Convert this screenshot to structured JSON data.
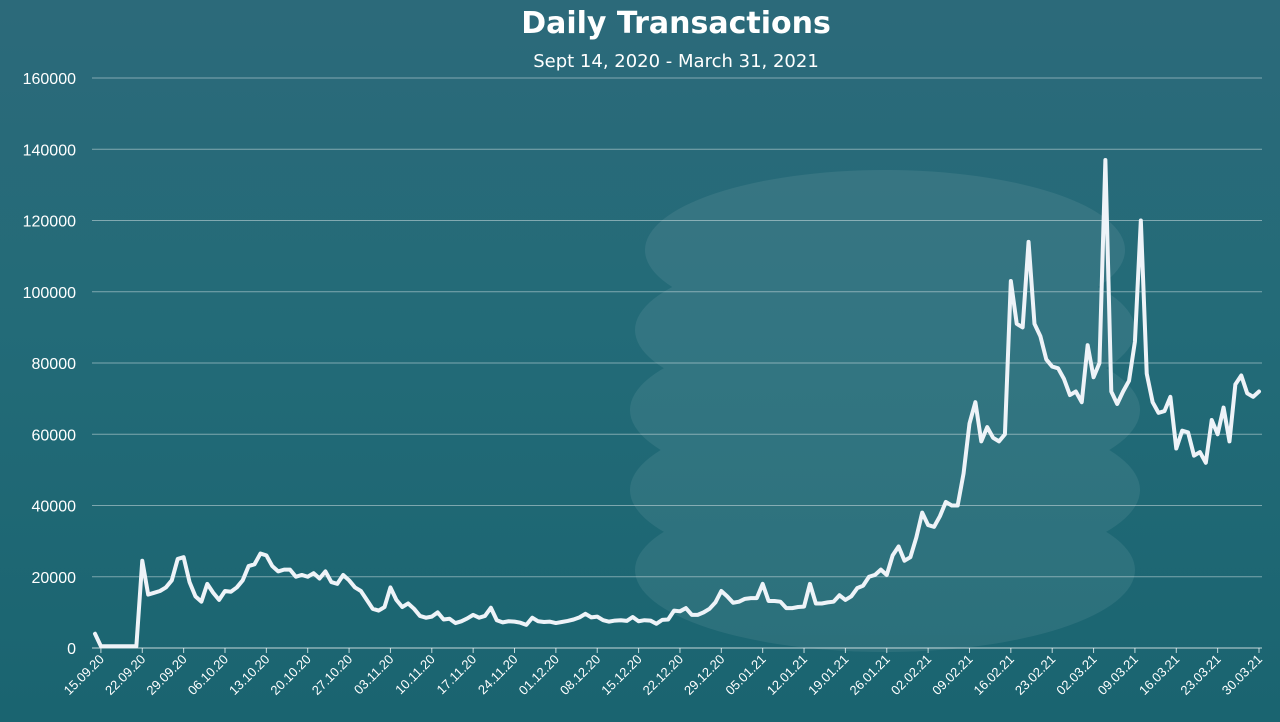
{
  "chart_data": {
    "type": "line",
    "title": "Daily Transactions",
    "subtitle": "Sept 14, 2020 - March 31, 2021",
    "xlabel": "",
    "ylabel": "",
    "ylim": [
      0,
      160000
    ],
    "yticks": [
      0,
      20000,
      40000,
      60000,
      80000,
      100000,
      120000,
      140000,
      160000
    ],
    "xticks": [
      "15.09.20",
      "22.09.20",
      "29.09.20",
      "06.10.20",
      "13.10.20",
      "20.10.20",
      "27.10.20",
      "03.11.20",
      "10.11.20",
      "17.11.20",
      "24.11.20",
      "01.12.20",
      "08.12.20",
      "15.12.20",
      "22.12.20",
      "29.12.20",
      "05.01.21",
      "12.01.21",
      "19.01.21",
      "26.01.21",
      "02.02.21",
      "09.02.21",
      "16.02.21",
      "23.02.21",
      "02.03.21",
      "09.03.21",
      "16.03.21",
      "23.03.21",
      "30.03.21"
    ],
    "grid": true,
    "line_color": "#eef3f8",
    "series": [
      {
        "values": [
          4000,
          500,
          500,
          500,
          500,
          500,
          500,
          500,
          24500,
          15000,
          15500,
          16000,
          17000,
          19000,
          25000,
          25500,
          18500,
          14500,
          13000,
          18000,
          15500,
          13500,
          16000,
          15800,
          17000,
          19000,
          23000,
          23500,
          26500,
          26000,
          23000,
          21500,
          22000,
          22000,
          20000,
          20500,
          20000,
          21000,
          19500,
          21500,
          18500,
          18000,
          20500,
          19000,
          17000,
          16000,
          13500,
          11000,
          10500,
          11500,
          17000,
          13500,
          11500,
          12500,
          11000,
          9000,
          8500,
          8800,
          10000,
          8000,
          8200,
          7000,
          7500,
          8300,
          9300,
          8500,
          9000,
          11300,
          7800,
          7200,
          7500,
          7400,
          7100,
          6500,
          8500,
          7500,
          7300,
          7400,
          7000,
          7300,
          7600,
          8000,
          8600,
          9600,
          8600,
          8800,
          7800,
          7400,
          7700,
          7800,
          7600,
          8700,
          7500,
          7800,
          7700,
          6800,
          7900,
          8000,
          10500,
          10300,
          11200,
          9300,
          9300,
          10000,
          11000,
          12800,
          16000,
          14500,
          12700,
          13000,
          13800,
          14000,
          14000,
          18000,
          13200,
          13200,
          13000,
          11200,
          11200,
          11500,
          11600,
          18000,
          12500,
          12500,
          12800,
          13000,
          14800,
          13500,
          14500,
          16800,
          17500,
          20000,
          20500,
          22000,
          20500,
          26000,
          28500,
          24500,
          25500,
          31000,
          38000,
          34500,
          34000,
          37000,
          41000,
          40000,
          40000,
          49000,
          63000,
          69000,
          58000,
          62000,
          59000,
          58000,
          60000,
          103000,
          91000,
          90000,
          114000,
          91000,
          87500,
          81000,
          79000,
          78500,
          75500,
          71000,
          72000,
          69000,
          85000,
          76000,
          80000,
          137000,
          72000,
          68500,
          72000,
          75000,
          86000,
          120000,
          77000,
          69000,
          66000,
          66500,
          70500,
          56000,
          61000,
          60500,
          54000,
          55000,
          52000,
          64000,
          60000,
          67500,
          58000,
          74000,
          76500,
          71500,
          70500,
          72000
        ]
      }
    ]
  }
}
